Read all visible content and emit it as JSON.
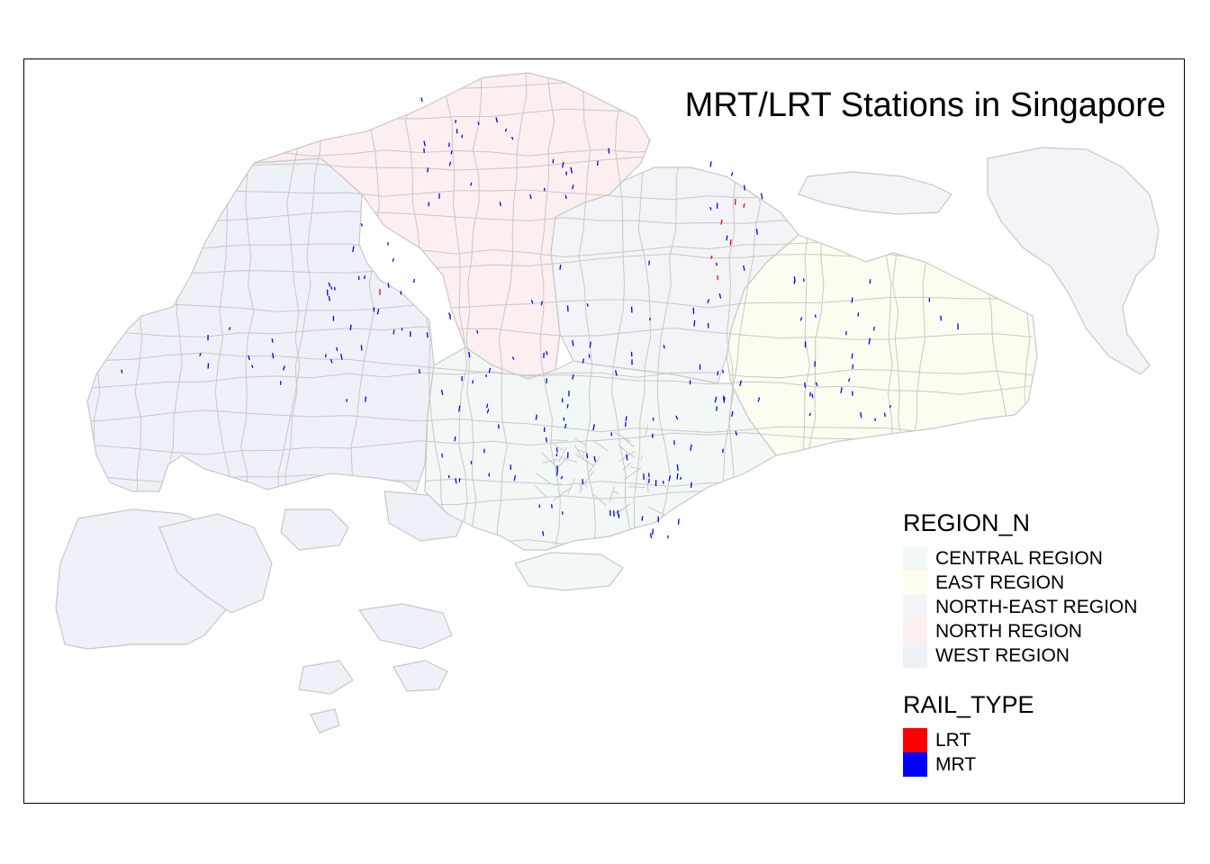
{
  "map": {
    "title": "MRT/LRT Stations in Singapore",
    "region_legend": {
      "title": "REGION_N",
      "items": [
        {
          "label": "CENTRAL REGION",
          "color": "#f1f8f5",
          "key": "central"
        },
        {
          "label": "EAST REGION",
          "color": "#fdfcf0",
          "key": "east"
        },
        {
          "label": "NORTH-EAST REGION",
          "color": "#f4f4f8",
          "key": "northeast"
        },
        {
          "label": "NORTH REGION",
          "color": "#fcefef",
          "key": "north"
        },
        {
          "label": "WEST REGION",
          "color": "#eef1f7",
          "key": "west"
        }
      ]
    },
    "rail_legend": {
      "title": "RAIL_TYPE",
      "items": [
        {
          "label": "LRT",
          "color": "#ff0000"
        },
        {
          "label": "MRT",
          "color": "#0000ff"
        }
      ]
    },
    "boundary_color": "#c8c8c8"
  }
}
